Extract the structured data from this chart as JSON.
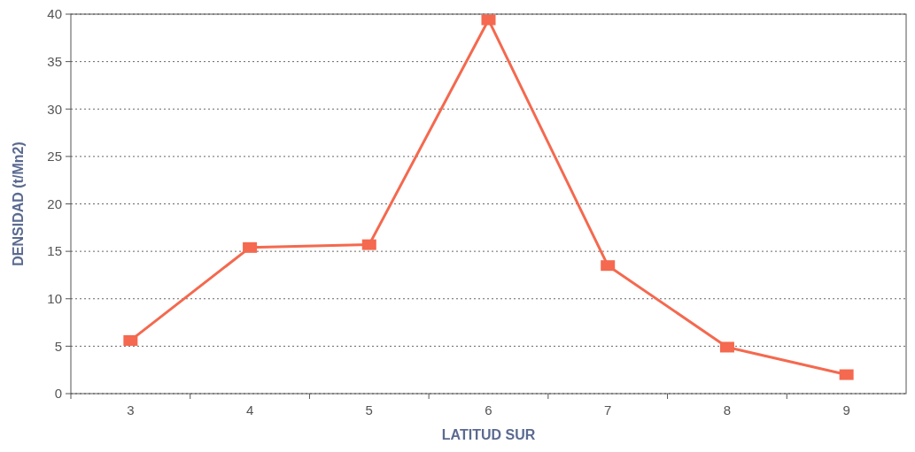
{
  "chart_data": {
    "type": "line",
    "xlabel": "LATITUD SUR",
    "ylabel": "DENSIDAD (t/Mn2)",
    "categories": [
      "3",
      "4",
      "5",
      "6",
      "7",
      "8",
      "9"
    ],
    "series": [
      {
        "color": "#f4694f",
        "values": [
          5.6,
          15.4,
          15.7,
          39.4,
          13.5,
          4.9,
          2.0
        ]
      }
    ],
    "ylim": [
      0,
      40
    ],
    "yticks": [
      0,
      5,
      10,
      15,
      20,
      25,
      30,
      35,
      40
    ],
    "grid": "y",
    "marker": "square",
    "line_style": "solid"
  }
}
